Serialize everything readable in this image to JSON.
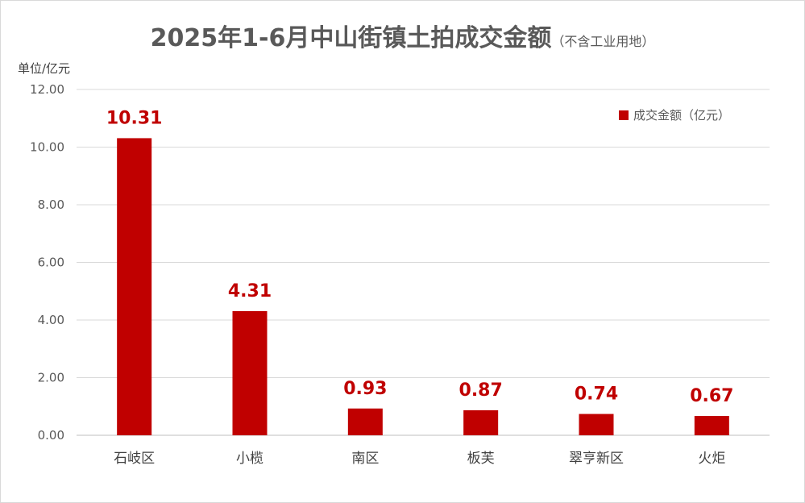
{
  "chart_data": {
    "type": "bar",
    "title": "2025年1-6月中山街镇土拍成交金额",
    "subtitle": "（不含工业用地）",
    "ylabel": "单位/亿元",
    "xlabel": "",
    "ylim": [
      0,
      12
    ],
    "yticks": [
      "0.00",
      "2.00",
      "4.00",
      "6.00",
      "8.00",
      "10.00",
      "12.00"
    ],
    "grid": true,
    "legend_position": "top-right",
    "categories": [
      "石岐区",
      "小榄",
      "南区",
      "板芙",
      "翠亨新区",
      "火炬"
    ],
    "series": [
      {
        "name": "成交金额（亿元）",
        "color": "#c00000",
        "values": [
          10.31,
          4.31,
          0.93,
          0.87,
          0.74,
          0.67
        ],
        "labels": [
          "10.31",
          "4.31",
          "0.93",
          "0.87",
          "0.74",
          "0.67"
        ]
      }
    ]
  }
}
